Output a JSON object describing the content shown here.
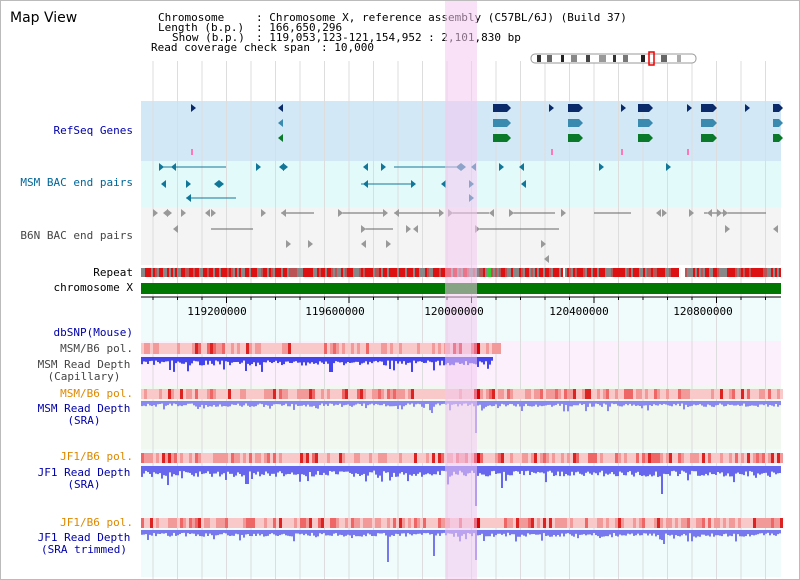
{
  "header": {
    "title": "Map View",
    "chromosome_key": "Chromosome",
    "chromosome_value": ": Chromosome X, reference assembly (C57BL/6J) (Build 37)",
    "length_key": "Length (b.p.)",
    "length_value": ": 166,650,296",
    "show_key": "Show (b.p.)",
    "show_value": ": 119,053,123-121,154,952 : 2,101,830 bp",
    "coverage_key": "Read coverage check span",
    "coverage_value": ": 10,000"
  },
  "tracks": {
    "refseq": "RefSeq Genes",
    "msm_bac": "MSM BAC end pairs",
    "b6n_bac": "B6N BAC end pairs",
    "repeat": "Repeat",
    "chromosome": "chromosome X",
    "dbsnp": "dbSNP(Mouse)",
    "msm_pol": "MSM/B6 pol.",
    "msm_depth_cap_1": "MSM Read Depth",
    "msm_depth_cap_2": "(Capillary)",
    "msm_pol_sra": "MSM/B6 pol.",
    "msm_depth_sra_1": "MSM Read Depth",
    "msm_depth_sra_2": "(SRA)",
    "jf1_pol": "JF1/B6 pol.",
    "jf1_depth_1": "JF1 Read Depth",
    "jf1_depth_2": "(SRA)",
    "jf1_pol_trim": "JF1/B6 pol.",
    "jf1_trim_1": "JF1 Read Depth",
    "jf1_trim_2": "(SRA trimmed)"
  },
  "axis": {
    "ticks": [
      "119200000",
      "119600000",
      "120000000",
      "120400000",
      "120800000"
    ]
  },
  "colors": {
    "track_blue_label": "#0000aa",
    "track_teal_label": "#006699",
    "track_gray_label": "#444444",
    "track_orange_label": "#dd8800",
    "highlight": "#f4c8f0",
    "refseq_bg": "#d2e8f6",
    "bac_msm_bg": "#e2fafa",
    "bac_b6n_bg": "#f4f4f4",
    "chrom_green": "#007700",
    "depth_blue": "#5555ee"
  }
}
